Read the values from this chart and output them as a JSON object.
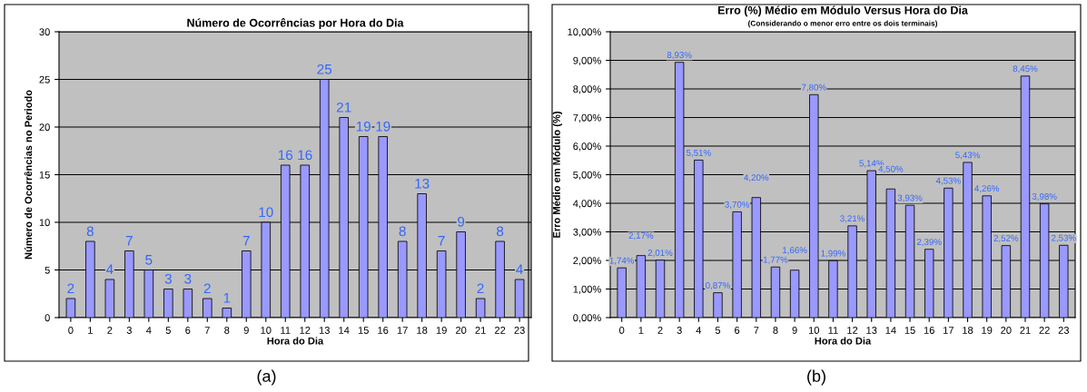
{
  "chart_data": [
    {
      "type": "bar",
      "title": "Número de Ocorrências por Hora do Dia",
      "xlabel": "Hora do Dia",
      "ylabel": "Número de Ocorrências no Periodo",
      "categories": [
        "0",
        "1",
        "2",
        "3",
        "4",
        "5",
        "6",
        "7",
        "8",
        "9",
        "10",
        "11",
        "12",
        "13",
        "14",
        "15",
        "16",
        "17",
        "18",
        "19",
        "20",
        "21",
        "22",
        "23"
      ],
      "values": [
        2,
        8,
        4,
        7,
        5,
        3,
        3,
        2,
        1,
        7,
        10,
        16,
        16,
        25,
        21,
        19,
        19,
        8,
        13,
        7,
        9,
        2,
        8,
        4
      ],
      "color": "#9999ff",
      "ylim": [
        0,
        30
      ],
      "yticks": [
        0,
        5,
        10,
        15,
        20,
        25,
        30
      ],
      "grid": "y",
      "data_labels": true,
      "annotations": [
        "(a)"
      ]
    },
    {
      "type": "bar",
      "title": "Erro (%) Médio em Módulo Versus Hora do Dia",
      "subtitle": "(Considerando o menor erro entre os dois terminais)",
      "xlabel": "Hora do Dia",
      "ylabel": "Erro Médio em Módulo (%)",
      "categories": [
        "0",
        "1",
        "2",
        "3",
        "4",
        "5",
        "6",
        "7",
        "8",
        "9",
        "10",
        "11",
        "12",
        "13",
        "14",
        "15",
        "16",
        "17",
        "18",
        "19",
        "20",
        "21",
        "22",
        "23"
      ],
      "values": [
        1.74,
        2.17,
        2.01,
        8.93,
        5.51,
        0.87,
        3.7,
        4.2,
        1.77,
        1.66,
        7.8,
        1.99,
        3.21,
        5.14,
        4.5,
        3.93,
        2.39,
        4.53,
        5.43,
        4.26,
        2.52,
        8.45,
        3.98,
        2.53
      ],
      "value_labels": [
        "1,74%",
        "2,17%",
        "2,01%",
        "8,93%",
        "5,51%",
        "0,87%",
        "3,70%",
        "4,20%",
        "1,77%",
        "1,66%",
        "7,80%",
        "1,99%",
        "3,21%",
        "5,14%",
        "4,50%",
        "3,93%",
        "2,39%",
        "4,53%",
        "5,43%",
        "4,26%",
        "2,52%",
        "8,45%",
        "3,98%",
        "2,53%"
      ],
      "color": "#9999ff",
      "ylim": [
        0,
        10
      ],
      "yticks": [
        {
          "value": 0,
          "label": "0,00%"
        },
        {
          "value": 1,
          "label": "1,00%"
        },
        {
          "value": 2,
          "label": "2,00%"
        },
        {
          "value": 3,
          "label": "3,00%"
        },
        {
          "value": 4,
          "label": "4,00%"
        },
        {
          "value": 5,
          "label": "5,00%"
        },
        {
          "value": 6,
          "label": "6,00%"
        },
        {
          "value": 7,
          "label": "7,00%"
        },
        {
          "value": 8,
          "label": "8,00%"
        },
        {
          "value": 9,
          "label": "9,00%"
        },
        {
          "value": 10,
          "label": "10,00%"
        }
      ],
      "grid": "y",
      "annotations": [
        "(b)"
      ]
    }
  ]
}
